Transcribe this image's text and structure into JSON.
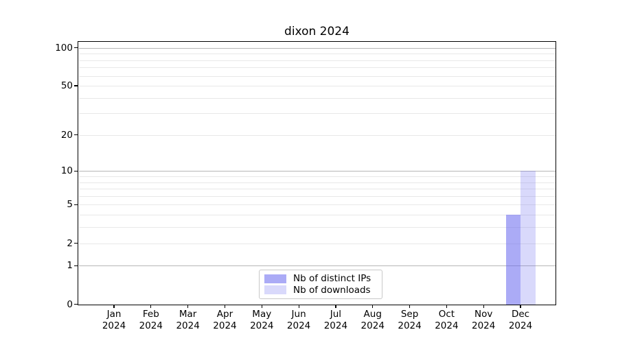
{
  "chart_data": {
    "type": "bar",
    "title": "dixon 2024",
    "x": {
      "months": [
        "Jan",
        "Feb",
        "Mar",
        "Apr",
        "May",
        "Jun",
        "Jul",
        "Aug",
        "Sep",
        "Oct",
        "Nov",
        "Dec"
      ],
      "year_line": "2024"
    },
    "series": [
      {
        "name": "Nb of distinct IPs",
        "color": "rgba(102,102,238,0.55)",
        "values": [
          0,
          0,
          0,
          0,
          0,
          0,
          0,
          0,
          0,
          0,
          0,
          4
        ]
      },
      {
        "name": "Nb of downloads",
        "color": "rgba(102,102,238,0.25)",
        "values": [
          0,
          0,
          0,
          0,
          0,
          0,
          0,
          0,
          0,
          0,
          0,
          10
        ]
      }
    ],
    "y_axis": {
      "scale": "log1p",
      "tick_values": [
        0,
        1,
        2,
        5,
        10,
        20,
        50,
        100
      ],
      "tick_labels": [
        "0",
        "1",
        "2",
        "5",
        "10",
        "20",
        "50",
        "100"
      ],
      "major_gridlines": [
        1,
        10,
        100
      ],
      "minor_gridlines": [
        2,
        3,
        4,
        5,
        6,
        7,
        8,
        9,
        20,
        30,
        40,
        50,
        60,
        70,
        80,
        90
      ],
      "top_value": 112
    },
    "legend": {
      "location": "lower center",
      "items": [
        "Nb of distinct IPs",
        "Nb of downloads"
      ]
    },
    "colors": {
      "background": "#ffffff",
      "spine": "#000000",
      "major_grid": "#b5b5b5",
      "minor_grid": "#e8e8e8",
      "bar_distinct_ips": "rgba(102,102,238,0.55)",
      "bar_downloads": "rgba(102,102,238,0.25)"
    }
  }
}
